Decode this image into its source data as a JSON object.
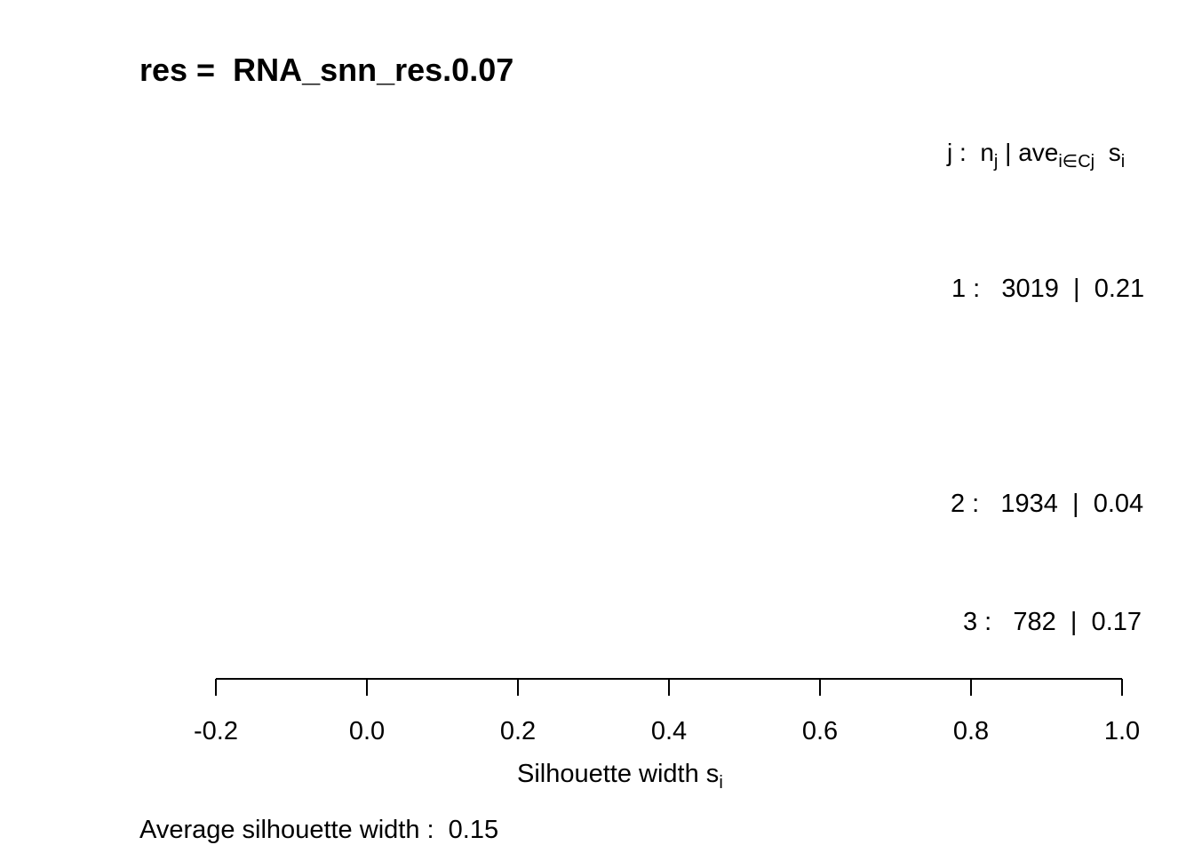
{
  "title": "res =  RNA_snn_res.0.07",
  "legend_header": {
    "j": "j :",
    "n": "n",
    "n_sub": "j",
    "sep": "| ave",
    "ave_sub": "i∈Cj",
    "s": "s",
    "s_sub": "i"
  },
  "xlabel": {
    "main": "Silhouette width s",
    "sub": "i"
  },
  "footer": "Average silhouette width :  0.15",
  "chart_data": {
    "type": "bar",
    "orientation": "horizontal",
    "title": "res =  RNA_snn_res.0.07",
    "xlabel": "Silhouette width si",
    "xlim": [
      -0.2,
      1.0
    ],
    "xticks": [
      -0.2,
      0.0,
      0.2,
      0.4,
      0.6,
      0.8,
      1.0
    ],
    "xtick_labels": [
      "-0.2",
      "0.0",
      "0.2",
      "0.4",
      "0.6",
      "0.8",
      "1.0"
    ],
    "clusters": [
      {
        "j": 1,
        "n": 3019,
        "ave": 0.21,
        "label": "1 :   3019  |  0.21"
      },
      {
        "j": 2,
        "n": 1934,
        "ave": 0.04,
        "label": "2 :   1934  |  0.04"
      },
      {
        "j": 3,
        "n": 782,
        "ave": 0.17,
        "label": "3 :   782  |  0.17"
      }
    ],
    "average_silhouette_width": 0.15,
    "grid": false
  }
}
